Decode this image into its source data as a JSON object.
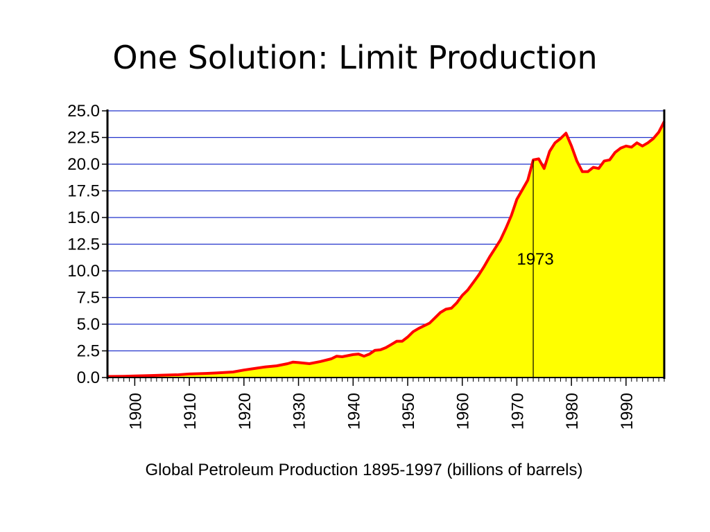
{
  "slide": {
    "title": "One Solution: Limit Production"
  },
  "colors": {
    "area_fill": "#ffff00",
    "series_line": "#ff0000",
    "gridline": "#2233cc",
    "axis": "#000000",
    "background": "#ffffff"
  },
  "chart_data": {
    "type": "area",
    "title": "",
    "xlabel": "Global Petroleum Production 1895-1997 (billions of barrels)",
    "ylabel": "",
    "xlim": [
      1895,
      1997
    ],
    "ylim": [
      0,
      25
    ],
    "grid": true,
    "x_ticks": [
      1900,
      1910,
      1920,
      1930,
      1940,
      1950,
      1960,
      1970,
      1980,
      1990
    ],
    "x_tick_labels": [
      "1900",
      "1910",
      "1920",
      "1930",
      "1940",
      "1950",
      "1960",
      "1970",
      "1980",
      "1990"
    ],
    "y_ticks": [
      0,
      2.5,
      5,
      7.5,
      10,
      12.5,
      15,
      17.5,
      20,
      22.5,
      25
    ],
    "y_tick_labels": [
      "0.0",
      "2.5",
      "5.0",
      "7.5",
      "10.0",
      "12.5",
      "15.0",
      "17.5",
      "20.0",
      "22.5",
      "25.0"
    ],
    "series": [
      {
        "x": [
          1895,
          1898,
          1900,
          1903,
          1905,
          1908,
          1910,
          1913,
          1915,
          1918,
          1920,
          1922,
          1924,
          1926,
          1928,
          1929,
          1930,
          1932,
          1934,
          1936,
          1937,
          1938,
          1940,
          1941,
          1942,
          1943,
          1944,
          1945,
          1946,
          1947,
          1948,
          1949,
          1950,
          1951,
          1952,
          1953,
          1954,
          1955,
          1956,
          1957,
          1958,
          1959,
          1960,
          1961,
          1962,
          1963,
          1964,
          1965,
          1966,
          1967,
          1968,
          1969,
          1970,
          1971,
          1972,
          1973,
          1974,
          1975,
          1976,
          1977,
          1978,
          1979,
          1980,
          1981,
          1982,
          1983,
          1984,
          1985,
          1986,
          1987,
          1988,
          1989,
          1990,
          1991,
          1992,
          1993,
          1994,
          1995,
          1996,
          1997
        ],
        "values": [
          0.1,
          0.12,
          0.15,
          0.19,
          0.22,
          0.26,
          0.33,
          0.38,
          0.43,
          0.52,
          0.7,
          0.85,
          1.0,
          1.1,
          1.3,
          1.45,
          1.4,
          1.3,
          1.5,
          1.75,
          2.0,
          1.95,
          2.15,
          2.2,
          2.0,
          2.2,
          2.55,
          2.6,
          2.8,
          3.1,
          3.4,
          3.4,
          3.8,
          4.3,
          4.6,
          4.85,
          5.1,
          5.6,
          6.1,
          6.4,
          6.5,
          7.0,
          7.7,
          8.2,
          8.9,
          9.6,
          10.4,
          11.3,
          12.1,
          12.9,
          14.0,
          15.2,
          16.7,
          17.6,
          18.5,
          20.4,
          20.5,
          19.6,
          21.2,
          22.0,
          22.4,
          22.9,
          21.7,
          20.3,
          19.3,
          19.3,
          19.7,
          19.6,
          20.3,
          20.4,
          21.1,
          21.5,
          21.7,
          21.6,
          22.0,
          21.7,
          22.0,
          22.4,
          23.0,
          24.0
        ]
      }
    ],
    "annotations": [
      {
        "x": 1973,
        "label": "1973"
      }
    ]
  }
}
